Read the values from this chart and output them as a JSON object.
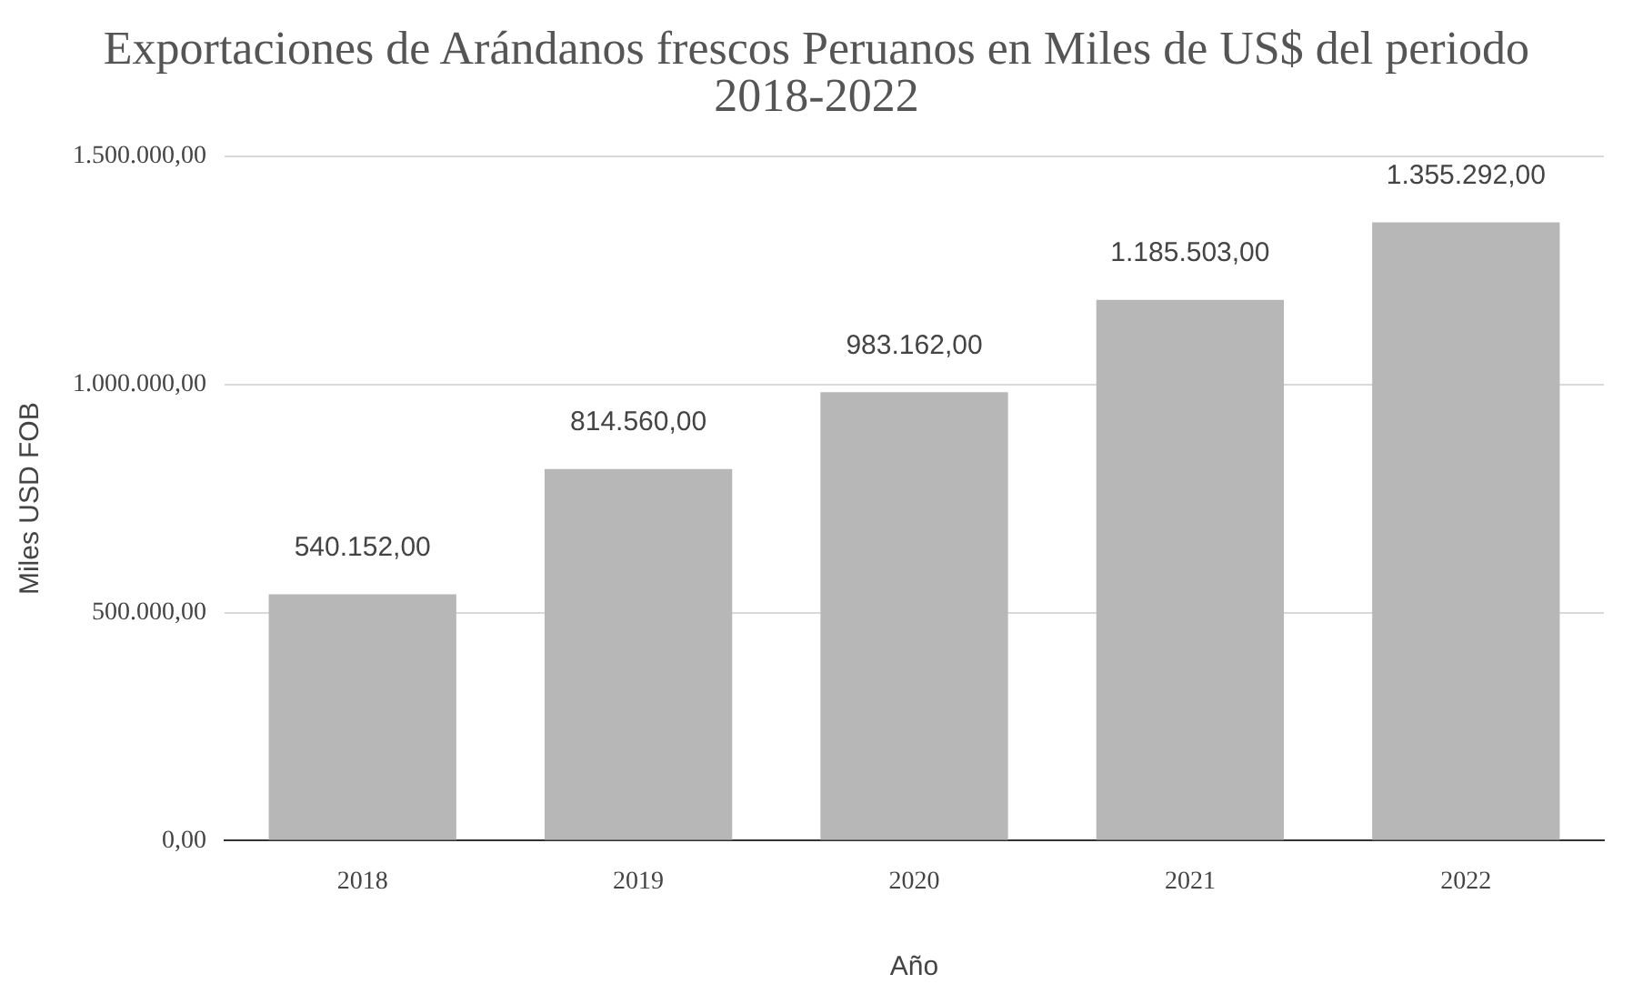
{
  "chart_data": {
    "type": "bar",
    "title": "Exportaciones de Arándanos frescos Peruanos en Miles de US$ del periodo 2018-2022",
    "xlabel": "Año",
    "ylabel": "Miles USD FOB",
    "categories": [
      "2018",
      "2019",
      "2020",
      "2021",
      "2022"
    ],
    "values": [
      540152,
      814560,
      983162,
      1185503,
      1355292
    ],
    "value_labels": [
      "540.152,00",
      "814.560,00",
      "983.162,00",
      "1.185.503,00",
      "1.355.292,00"
    ],
    "color": "#b7b7b7",
    "ylim": [
      0,
      1500000
    ],
    "yticks": [
      {
        "value": 0,
        "label": "0,00"
      },
      {
        "value": 500000,
        "label": "500.000,00"
      },
      {
        "value": 1000000,
        "label": "1.000.000,00"
      },
      {
        "value": 1500000,
        "label": "1.500.000,00"
      }
    ],
    "grid": "y",
    "legend": false
  }
}
